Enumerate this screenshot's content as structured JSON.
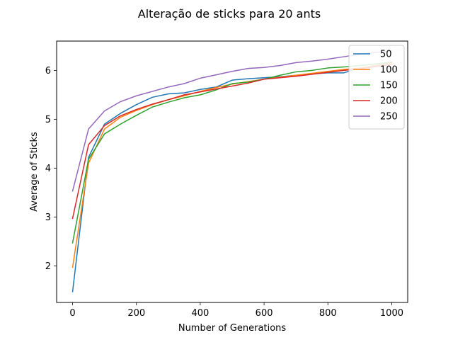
{
  "chart_data": {
    "type": "line",
    "title": "Alteração de sticks para 20 ants",
    "xlabel": "Number of Generations",
    "ylabel": "Average of Sticks",
    "xlim": [
      -50,
      1050
    ],
    "ylim": [
      1.25,
      6.6
    ],
    "xticks": [
      0,
      200,
      400,
      600,
      800,
      1000
    ],
    "yticks": [
      2,
      3,
      4,
      5,
      6
    ],
    "grid": false,
    "legend_position": "top-right",
    "x": [
      0,
      50,
      100,
      150,
      200,
      250,
      300,
      350,
      400,
      450,
      500,
      550,
      600,
      650,
      700,
      750,
      800,
      850,
      900,
      950,
      1000
    ],
    "series": [
      {
        "name": "50",
        "color": "#1f77b4",
        "values": [
          1.47,
          4.22,
          4.9,
          5.12,
          5.3,
          5.45,
          5.52,
          5.54,
          5.61,
          5.66,
          5.8,
          5.83,
          5.85,
          5.87,
          5.9,
          5.93,
          5.95,
          5.95,
          6.05,
          6.1,
          6.15
        ]
      },
      {
        "name": "100",
        "color": "#ff7f0e",
        "values": [
          1.97,
          4.1,
          4.8,
          5.04,
          5.18,
          5.3,
          5.4,
          5.48,
          5.57,
          5.65,
          5.72,
          5.77,
          5.82,
          5.86,
          5.9,
          5.94,
          5.98,
          6.02,
          6.05,
          6.1,
          6.15
        ]
      },
      {
        "name": "150",
        "color": "#2ca02c",
        "values": [
          2.47,
          4.18,
          4.7,
          4.9,
          5.08,
          5.25,
          5.35,
          5.44,
          5.5,
          5.6,
          5.73,
          5.76,
          5.82,
          5.9,
          5.97,
          6.0,
          6.05,
          6.07,
          6.1,
          6.13,
          6.17
        ]
      },
      {
        "name": "200",
        "color": "#d62728",
        "values": [
          2.97,
          4.48,
          4.87,
          5.07,
          5.2,
          5.31,
          5.4,
          5.5,
          5.56,
          5.62,
          5.68,
          5.74,
          5.82,
          5.85,
          5.88,
          5.92,
          5.96,
          6.0,
          6.03,
          6.08,
          6.12
        ]
      },
      {
        "name": "250",
        "color": "#9467bd",
        "values": [
          3.53,
          4.8,
          5.17,
          5.36,
          5.48,
          5.57,
          5.66,
          5.73,
          5.84,
          5.91,
          5.98,
          6.04,
          6.06,
          6.1,
          6.16,
          6.19,
          6.23,
          6.28,
          6.33,
          6.37,
          6.4
        ]
      }
    ]
  }
}
